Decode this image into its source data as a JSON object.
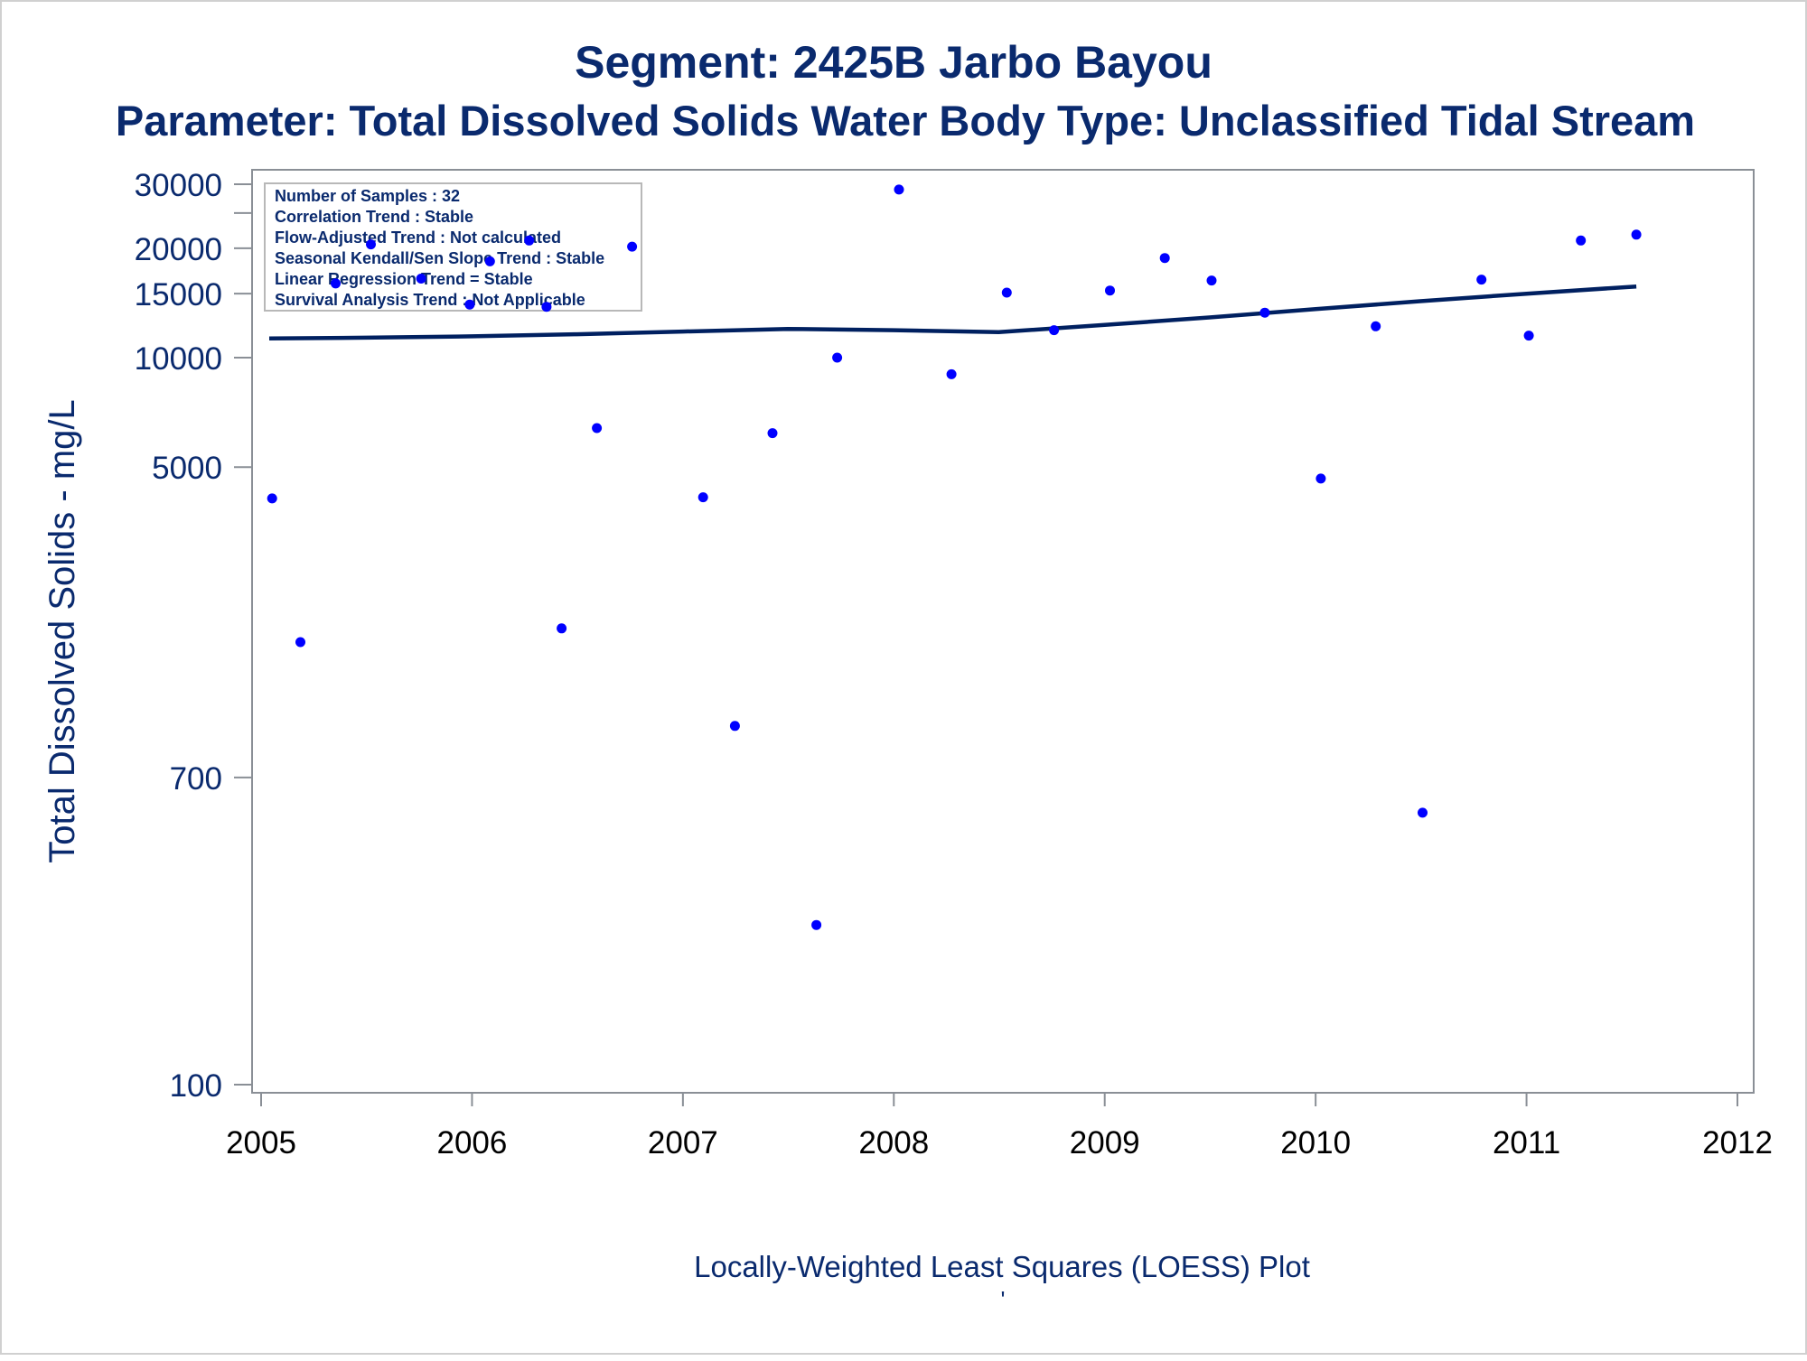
{
  "chart_data": {
    "type": "scatter",
    "title": "Segment: 2425B  Jarbo Bayou",
    "subtitle": "Parameter: Total Dissolved Solids   Water Body Type: Unclassified Tidal Stream",
    "xlabel": "Locally-Weighted Least Squares (LOESS) Plot",
    "ylabel": "Total Dissolved Solids - mg/L",
    "footnote": "'",
    "y_scale": "log",
    "xlim": [
      2005,
      2012
    ],
    "ylim": [
      100,
      35000
    ],
    "x_ticks": [
      "2005",
      "2006",
      "2007",
      "2008",
      "2009",
      "2010",
      "2011",
      "2012"
    ],
    "y_ticks": [
      {
        "value": 30000,
        "label": "30000"
      },
      {
        "value": 25000,
        "label": ""
      },
      {
        "value": 20000,
        "label": "20000"
      },
      {
        "value": 15000,
        "label": "15000"
      },
      {
        "value": 10000,
        "label": "10000"
      },
      {
        "value": 5000,
        "label": "5000"
      },
      {
        "value": 700,
        "label": "700"
      },
      {
        "value": 100,
        "label": "100"
      }
    ],
    "info_box": {
      "position": "top-left",
      "lines": [
        "Number of Samples : 32",
        "Correlation Trend : Stable",
        "Flow-Adjusted Trend : Not calculated",
        "Seasonal Kendall/Sen Slope Trend : Stable",
        "Linear Regression Trend = Stable",
        "Survival Analysis Trend : Not Applicable"
      ]
    },
    "series": [
      {
        "kind": "points",
        "color": "#0000ff",
        "points": [
          {
            "x": "2005-01-20",
            "y": 4100
          },
          {
            "x": "2005-03-10",
            "y": 1650
          },
          {
            "x": "2005-05-10",
            "y": 16000
          },
          {
            "x": "2005-07-10",
            "y": 20500
          },
          {
            "x": "2005-10-05",
            "y": 16500
          },
          {
            "x": "2005-12-28",
            "y": 14000
          },
          {
            "x": "2006-02-01",
            "y": 18400
          },
          {
            "x": "2006-04-10",
            "y": 21000
          },
          {
            "x": "2006-05-10",
            "y": 13800
          },
          {
            "x": "2006-06-05",
            "y": 1800
          },
          {
            "x": "2006-08-05",
            "y": 6400
          },
          {
            "x": "2006-10-05",
            "y": 20200
          },
          {
            "x": "2007-02-05",
            "y": 4130
          },
          {
            "x": "2007-04-01",
            "y": 970
          },
          {
            "x": "2007-06-05",
            "y": 6200
          },
          {
            "x": "2007-08-20",
            "y": 275
          },
          {
            "x": "2007-09-25",
            "y": 10000
          },
          {
            "x": "2008-01-10",
            "y": 29000
          },
          {
            "x": "2008-04-10",
            "y": 9000
          },
          {
            "x": "2008-07-15",
            "y": 15100
          },
          {
            "x": "2008-10-05",
            "y": 11900
          },
          {
            "x": "2009-01-10",
            "y": 15300
          },
          {
            "x": "2009-04-15",
            "y": 18800
          },
          {
            "x": "2009-07-05",
            "y": 16300
          },
          {
            "x": "2009-10-05",
            "y": 13300
          },
          {
            "x": "2010-01-10",
            "y": 4650
          },
          {
            "x": "2010-04-15",
            "y": 12200
          },
          {
            "x": "2010-07-05",
            "y": 560
          },
          {
            "x": "2010-10-15",
            "y": 16400
          },
          {
            "x": "2011-01-05",
            "y": 11500
          },
          {
            "x": "2011-04-05",
            "y": 21000
          },
          {
            "x": "2011-07-10",
            "y": 21800
          }
        ]
      },
      {
        "kind": "loess-line",
        "color": "#002060",
        "points": [
          {
            "x": "2005-01-15",
            "y": 11300
          },
          {
            "x": "2005-07-01",
            "y": 11350
          },
          {
            "x": "2006-01-01",
            "y": 11450
          },
          {
            "x": "2006-07-01",
            "y": 11600
          },
          {
            "x": "2007-01-01",
            "y": 11800
          },
          {
            "x": "2007-07-01",
            "y": 12000
          },
          {
            "x": "2008-01-01",
            "y": 11900
          },
          {
            "x": "2008-07-01",
            "y": 11750
          },
          {
            "x": "2009-01-01",
            "y": 12300
          },
          {
            "x": "2009-07-01",
            "y": 12900
          },
          {
            "x": "2010-01-01",
            "y": 13600
          },
          {
            "x": "2010-07-01",
            "y": 14300
          },
          {
            "x": "2011-01-01",
            "y": 15000
          },
          {
            "x": "2011-07-10",
            "y": 15700
          }
        ]
      }
    ]
  }
}
